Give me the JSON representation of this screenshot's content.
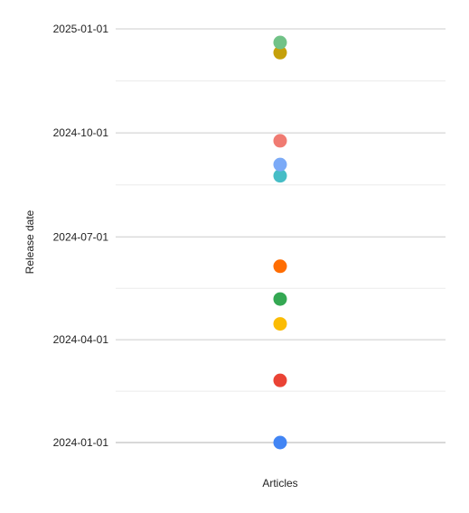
{
  "chart_data": {
    "type": "scatter",
    "xlabel": "Articles",
    "ylabel": "Release date",
    "ylim": [
      "2024-01-01",
      "2025-01-01"
    ],
    "y_ticks": [
      "2024-01-01",
      "2024-04-01",
      "2024-07-01",
      "2024-10-01",
      "2025-01-01"
    ],
    "grid": true,
    "points": [
      {
        "x": "Articles",
        "y": "2024-01-01",
        "color": "#4285f4"
      },
      {
        "x": "Articles",
        "y": "2024-02-25",
        "color": "#ea4335"
      },
      {
        "x": "Articles",
        "y": "2024-04-15",
        "color": "#fbbc04"
      },
      {
        "x": "Articles",
        "y": "2024-05-07",
        "color": "#34a853"
      },
      {
        "x": "Articles",
        "y": "2024-06-05",
        "color": "#ff6d01"
      },
      {
        "x": "Articles",
        "y": "2024-08-24",
        "color": "#46bdc6"
      },
      {
        "x": "Articles",
        "y": "2024-09-03",
        "color": "#7baaf7"
      },
      {
        "x": "Articles",
        "y": "2024-09-24",
        "color": "#f07b72"
      },
      {
        "x": "Articles",
        "y": "2024-12-11",
        "color": "#c5a00a"
      },
      {
        "x": "Articles",
        "y": "2024-12-20",
        "color": "#71c287"
      }
    ]
  }
}
